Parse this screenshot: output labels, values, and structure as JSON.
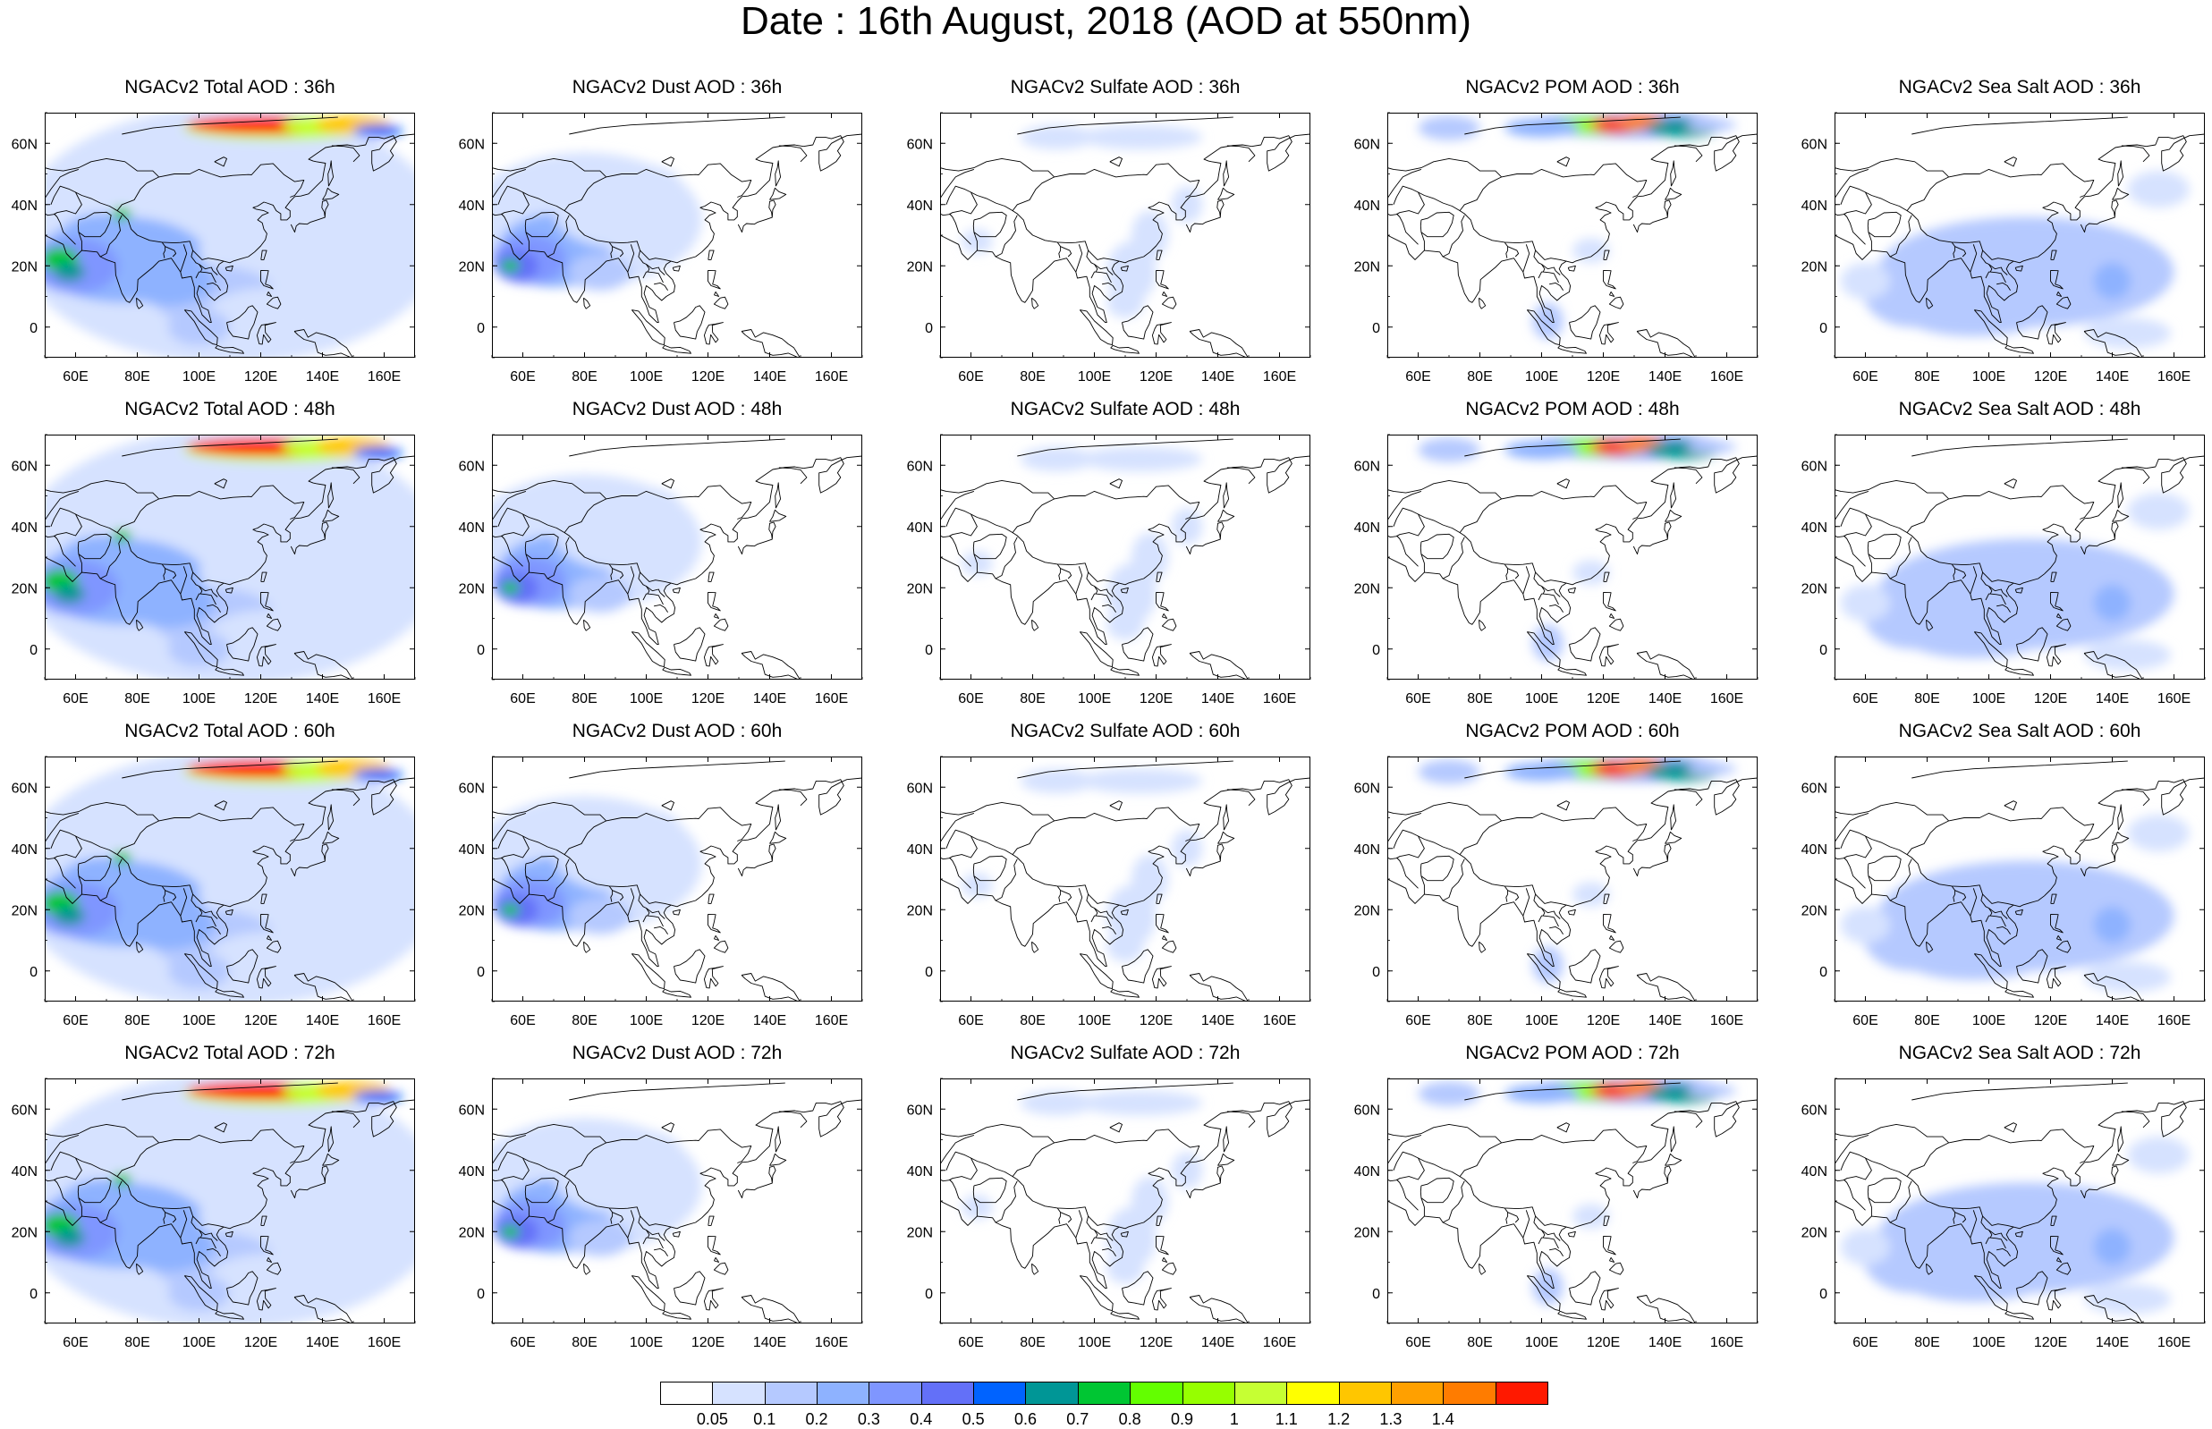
{
  "title": "Date : 16th August, 2018 (AOD at 550nm)",
  "map": {
    "lon_ticks": [
      "60E",
      "80E",
      "100E",
      "120E",
      "140E",
      "160E"
    ],
    "lat_ticks": [
      "60N",
      "40N",
      "20N",
      "0"
    ],
    "lon_values": [
      60,
      80,
      100,
      120,
      140,
      160
    ],
    "lat_values": [
      60,
      40,
      20,
      0
    ],
    "lon_range": [
      50,
      170
    ],
    "lat_range": [
      -10,
      70
    ]
  },
  "panels": [
    {
      "title": "NGACv2 Total AOD : 36h",
      "kind": "total"
    },
    {
      "title": "NGACv2 Dust AOD : 36h",
      "kind": "dust"
    },
    {
      "title": "NGACv2 Sulfate AOD : 36h",
      "kind": "sulfate"
    },
    {
      "title": "NGACv2 POM AOD : 36h",
      "kind": "pom"
    },
    {
      "title": "NGACv2 Sea Salt AOD : 36h",
      "kind": "seasalt"
    },
    {
      "title": "NGACv2 Total AOD : 48h",
      "kind": "total"
    },
    {
      "title": "NGACv2 Dust AOD : 48h",
      "kind": "dust"
    },
    {
      "title": "NGACv2 Sulfate AOD : 48h",
      "kind": "sulfate"
    },
    {
      "title": "NGACv2 POM AOD : 48h",
      "kind": "pom"
    },
    {
      "title": "NGACv2 Sea Salt AOD : 48h",
      "kind": "seasalt"
    },
    {
      "title": "NGACv2 Total AOD : 60h",
      "kind": "total"
    },
    {
      "title": "NGACv2 Dust AOD : 60h",
      "kind": "dust"
    },
    {
      "title": "NGACv2 Sulfate AOD : 60h",
      "kind": "sulfate"
    },
    {
      "title": "NGACv2 POM AOD : 60h",
      "kind": "pom"
    },
    {
      "title": "NGACv2 Sea Salt AOD : 60h",
      "kind": "seasalt"
    },
    {
      "title": "NGACv2 Total AOD : 72h",
      "kind": "total"
    },
    {
      "title": "NGACv2 Dust AOD : 72h",
      "kind": "dust"
    },
    {
      "title": "NGACv2 Sulfate AOD : 72h",
      "kind": "sulfate"
    },
    {
      "title": "NGACv2 POM AOD : 72h",
      "kind": "pom"
    },
    {
      "title": "NGACv2 Sea Salt  AOD : 72h",
      "kind": "seasalt"
    }
  ],
  "colorbar": {
    "labels": [
      "0.05",
      "0.1",
      "0.2",
      "0.3",
      "0.4",
      "0.5",
      "0.6",
      "0.7",
      "0.8",
      "0.9",
      "1",
      "1.1",
      "1.2",
      "1.3",
      "1.4"
    ],
    "colors": [
      "#ffffff",
      "#d6e2ff",
      "#b5c9ff",
      "#8eb2ff",
      "#7f96ff",
      "#6370f8",
      "#0063ff",
      "#009696",
      "#00c633",
      "#63ff00",
      "#96ff00",
      "#c6ff33",
      "#ffff00",
      "#ffc600",
      "#ffa000",
      "#ff7c00",
      "#ff1900"
    ]
  }
}
